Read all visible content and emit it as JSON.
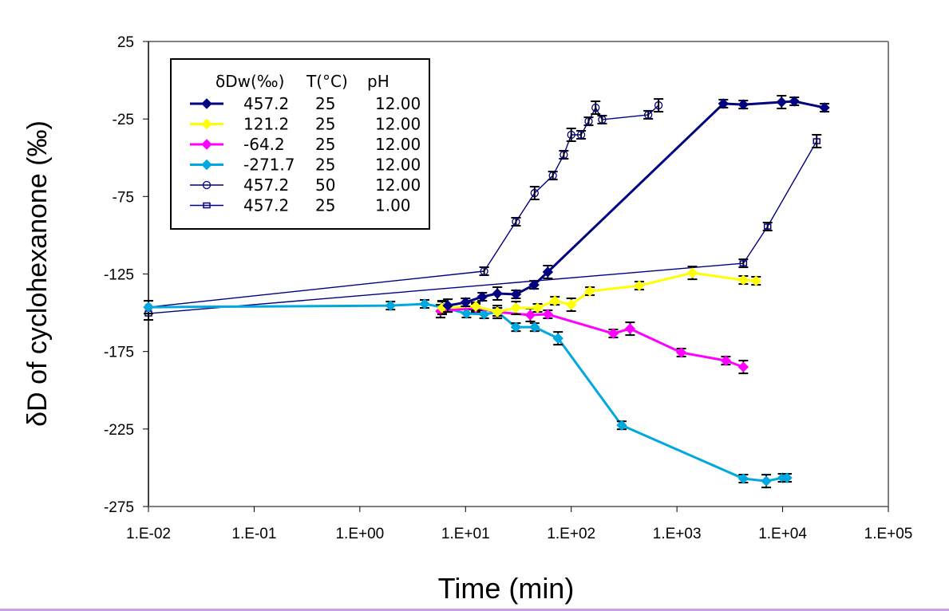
{
  "chart_data": {
    "type": "line",
    "title": "",
    "xlabel": "Time (min)",
    "ylabel": "δD of cyclohexanone (‰)",
    "xscale": "log",
    "xlim": [
      0.01,
      100000
    ],
    "ylim": [
      -275,
      25
    ],
    "x_ticks": [
      "1.E-02",
      "1.E-01",
      "1.E+00",
      "1.E+01",
      "1.E+02",
      "1.E+03",
      "1.E+04",
      "1.E+05"
    ],
    "x_tick_values": [
      0.01,
      0.1,
      1,
      10,
      100,
      1000,
      10000,
      100000
    ],
    "y_ticks": [
      "25",
      "-25",
      "-75",
      "-125",
      "-175",
      "-225",
      "-275"
    ],
    "y_tick_values": [
      25,
      -25,
      -75,
      -125,
      -175,
      -225,
      -275
    ],
    "grid": false,
    "legend": {
      "placement": "top-left",
      "header": [
        "δDw(‰)",
        "T(°C)",
        "pH"
      ],
      "entries": [
        {
          "dDw": "457.2",
          "T": "25",
          "pH": "12.00"
        },
        {
          "dDw": "121.2",
          "T": "25",
          "pH": "12.00"
        },
        {
          "dDw": "-64.2",
          "T": "25",
          "pH": "12.00"
        },
        {
          "dDw": "-271.7",
          "T": "25",
          "pH": "12.00"
        },
        {
          "dDw": "457.2",
          "T": "50",
          "pH": "12.00"
        },
        {
          "dDw": "457.2",
          "T": "25",
          "pH": "1.00"
        }
      ]
    },
    "series": [
      {
        "name": "457.2 25 12.00",
        "color": "#000080",
        "marker": "diamond",
        "line": "thick",
        "x": [
          6.8,
          10,
          14.4,
          20,
          30,
          44.5,
          60,
          2750,
          4240,
          9770,
          12900,
          24900
        ],
        "y": [
          -145.4,
          -143.3,
          -139.7,
          -137.6,
          -138.1,
          -132,
          -123.7,
          -15.1,
          -15.7,
          -14.1,
          -13.6,
          -17.7
        ]
      },
      {
        "name": "121.2 25 12.00",
        "color": "#ffff00",
        "marker": "diamond",
        "line": "thick",
        "x": [
          6,
          12.5,
          20,
          30,
          48,
          70,
          100,
          150,
          440,
          1400,
          4250,
          5600
        ],
        "y": [
          -146.9,
          -145.9,
          -149.5,
          -146.9,
          -146.9,
          -142.3,
          -144.8,
          -136.1,
          -132.5,
          -124.3,
          -128.9,
          -129.4
        ]
      },
      {
        "name": "-64.2 25 12.00",
        "color": "#ff00ff",
        "marker": "diamond",
        "line": "thick",
        "x": [
          5.8,
          12.5,
          20,
          41,
          60,
          250,
          360,
          1100,
          2900,
          4250
        ],
        "y": [
          -149,
          -146.9,
          -149.5,
          -151.5,
          -151,
          -163.4,
          -160.3,
          -175.7,
          -180.9,
          -185
        ]
      },
      {
        "name": "-271.7 25 12.00",
        "color": "#00a8e0",
        "marker": "diamond",
        "line": "thick",
        "x": [
          0.01,
          1.95,
          4.1,
          6,
          10.2,
          15,
          20,
          30,
          45,
          75,
          300,
          4250,
          7000,
          10000,
          11000
        ],
        "y": [
          -146.4,
          -145.4,
          -144.3,
          -146.4,
          -150.5,
          -151,
          -149.5,
          -159.3,
          -159.3,
          -166.5,
          -222.6,
          -257,
          -258.6,
          -256.5,
          -256.5
        ]
      },
      {
        "name": "457.2 50 12.00",
        "color": "#000080",
        "marker": "circle-open",
        "line": "thin",
        "x": [
          0.01,
          15,
          30,
          45,
          67,
          85,
          100,
          124,
          146,
          170,
          196,
          535,
          670
        ],
        "y": [
          -146.4,
          -123.2,
          -91.3,
          -72.8,
          -61.5,
          -48.1,
          -35.2,
          -35.2,
          -26.5,
          -17.7,
          -25.4,
          -22.3,
          -16.2
        ]
      },
      {
        "name": "457.2 25 1.00",
        "color": "#000080",
        "marker": "square-open",
        "line": "thin",
        "x": [
          0.01,
          4250,
          7200,
          21000
        ],
        "y": [
          -150.5,
          -118.1,
          -94.4,
          -39.3
        ]
      }
    ]
  }
}
